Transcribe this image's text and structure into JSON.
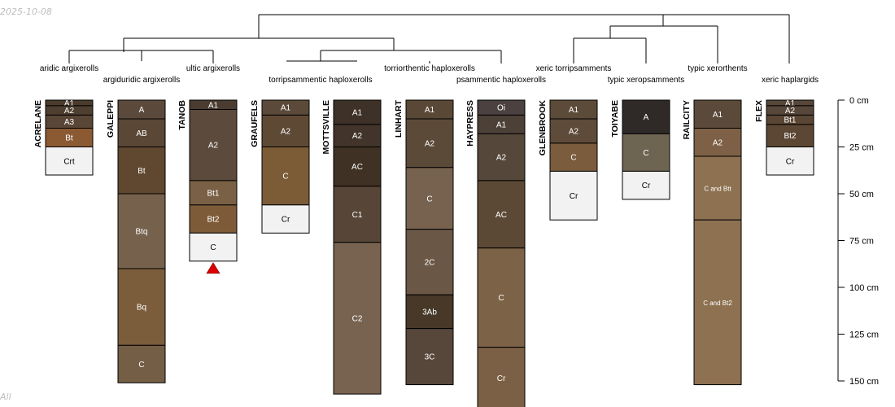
{
  "date_stamp": "2025-10-08",
  "footer_stub": "All",
  "depth_axis": {
    "unit": "cm",
    "ticks": [
      {
        "depth": 0,
        "label": "0 cm"
      },
      {
        "depth": 25,
        "label": "25 cm"
      },
      {
        "depth": 50,
        "label": "50 cm"
      },
      {
        "depth": 75,
        "label": "75 cm"
      },
      {
        "depth": 100,
        "label": "100 cm"
      },
      {
        "depth": 125,
        "label": "125 cm"
      },
      {
        "depth": 150,
        "label": "150 cm"
      }
    ]
  },
  "profiles": [
    {
      "name": "ACRELANE",
      "taxon": "aridic argixerolls",
      "horizons": [
        {
          "name": "A1",
          "top": 0,
          "bottom": 3,
          "color": "#4a3b2c"
        },
        {
          "name": "A2",
          "top": 3,
          "bottom": 8,
          "color": "#4e3f30"
        },
        {
          "name": "A3",
          "top": 8,
          "bottom": 15,
          "color": "#5a4636"
        },
        {
          "name": "Bt",
          "top": 15,
          "bottom": 25,
          "color": "#8b5a33"
        },
        {
          "name": "Crt",
          "top": 25,
          "bottom": 40,
          "color": "#f2f2f2"
        }
      ]
    },
    {
      "name": "GALEPPI",
      "taxon": "argiduridic argixerolls",
      "horizons": [
        {
          "name": "A",
          "top": 0,
          "bottom": 10,
          "color": "#5b4a3c"
        },
        {
          "name": "AB",
          "top": 10,
          "bottom": 25,
          "color": "#5a4735"
        },
        {
          "name": "Bt",
          "top": 25,
          "bottom": 50,
          "color": "#5f4730"
        },
        {
          "name": "Btq",
          "top": 50,
          "bottom": 90,
          "color": "#76614c"
        },
        {
          "name": "Bq",
          "top": 90,
          "bottom": 131,
          "color": "#7b5d3c"
        },
        {
          "name": "C",
          "top": 131,
          "bottom": 151,
          "color": "#745e46"
        }
      ]
    },
    {
      "name": "TANOB",
      "taxon": "ultic argixerolls",
      "horizons": [
        {
          "name": "A1",
          "top": 0,
          "bottom": 5,
          "color": "#4a3c30"
        },
        {
          "name": "A2",
          "top": 5,
          "bottom": 43,
          "color": "#5c4a3c"
        },
        {
          "name": "Bt1",
          "top": 43,
          "bottom": 56,
          "color": "#7a6045"
        },
        {
          "name": "Bt2",
          "top": 56,
          "bottom": 71,
          "color": "#7e5b38"
        },
        {
          "name": "C",
          "top": 71,
          "bottom": 86,
          "color": "#f2f2f2"
        }
      ]
    },
    {
      "name": "GRAUFELS",
      "taxon": "torripsammentic haploxerolls",
      "horizons": [
        {
          "name": "A1",
          "top": 0,
          "bottom": 8,
          "color": "#5b4a3a"
        },
        {
          "name": "A2",
          "top": 8,
          "bottom": 25,
          "color": "#5e4935"
        },
        {
          "name": "C",
          "top": 25,
          "bottom": 56,
          "color": "#7b5c37"
        },
        {
          "name": "Cr",
          "top": 56,
          "bottom": 71,
          "color": "#f2f2f2"
        }
      ]
    },
    {
      "name": "MOTTSVILLE",
      "taxon": "",
      "horizons": [
        {
          "name": "A1",
          "top": 0,
          "bottom": 13,
          "color": "#3e3127"
        },
        {
          "name": "A2",
          "top": 13,
          "bottom": 25,
          "color": "#42342a"
        },
        {
          "name": "AC",
          "top": 25,
          "bottom": 46,
          "color": "#3f3124"
        },
        {
          "name": "C1",
          "top": 46,
          "bottom": 76,
          "color": "#574637"
        },
        {
          "name": "C2",
          "top": 76,
          "bottom": 157,
          "color": "#776350"
        }
      ]
    },
    {
      "name": "LINHART",
      "taxon": "torriorthentic haploxerolls",
      "horizons": [
        {
          "name": "A1",
          "top": 0,
          "bottom": 10,
          "color": "#5a4837"
        },
        {
          "name": "A2",
          "top": 10,
          "bottom": 36,
          "color": "#5c4a39"
        },
        {
          "name": "C",
          "top": 36,
          "bottom": 69,
          "color": "#76624f"
        },
        {
          "name": "2C",
          "top": 69,
          "bottom": 104,
          "color": "#6a5746"
        },
        {
          "name": "3Ab",
          "top": 104,
          "bottom": 122,
          "color": "#473828"
        },
        {
          "name": "3C",
          "top": 122,
          "bottom": 152,
          "color": "#57473a"
        }
      ]
    },
    {
      "name": "HAYPRESS",
      "taxon": "psammentic haploxerolls",
      "horizons": [
        {
          "name": "Oi",
          "top": 0,
          "bottom": 8,
          "color": "#4a4140"
        },
        {
          "name": "A1",
          "top": 8,
          "bottom": 18,
          "color": "#4d4037"
        },
        {
          "name": "A2",
          "top": 18,
          "bottom": 43,
          "color": "#55473a"
        },
        {
          "name": "AC",
          "top": 43,
          "bottom": 79,
          "color": "#5c4935"
        },
        {
          "name": "C",
          "top": 79,
          "bottom": 132,
          "color": "#7c6247"
        },
        {
          "name": "Cr",
          "top": 132,
          "bottom": 165,
          "color": "#7b6045"
        }
      ]
    },
    {
      "name": "GLENBROOK",
      "taxon": "xeric torripsamments",
      "horizons": [
        {
          "name": "A1",
          "top": 0,
          "bottom": 10,
          "color": "#5d4b3a"
        },
        {
          "name": "A2",
          "top": 10,
          "bottom": 23,
          "color": "#5e4b39"
        },
        {
          "name": "C",
          "top": 23,
          "bottom": 38,
          "color": "#7b5c3d"
        },
        {
          "name": "Cr",
          "top": 38,
          "bottom": 64,
          "color": "#f2f2f2"
        }
      ]
    },
    {
      "name": "TOIYABE",
      "taxon": "typic xeropsamments",
      "horizons": [
        {
          "name": "A",
          "top": 0,
          "bottom": 18,
          "color": "#2f2a27"
        },
        {
          "name": "C",
          "top": 18,
          "bottom": 38,
          "color": "#6e6452"
        },
        {
          "name": "Cr",
          "top": 38,
          "bottom": 53,
          "color": "#f2f2f2"
        }
      ]
    },
    {
      "name": "RAILCITY",
      "taxon": "typic xerorthents",
      "horizons": [
        {
          "name": "A1",
          "top": 0,
          "bottom": 15,
          "color": "#5b4a3a"
        },
        {
          "name": "A2",
          "top": 15,
          "bottom": 30,
          "color": "#7d6045"
        },
        {
          "name": "C and Btt",
          "top": 30,
          "bottom": 64,
          "color": "#8d7150"
        },
        {
          "name": "C and Bt2",
          "top": 64,
          "bottom": 152,
          "color": "#8d7150"
        }
      ]
    },
    {
      "name": "FLEX",
      "taxon": "xeric haplargids",
      "horizons": [
        {
          "name": "A1",
          "top": 0,
          "bottom": 3,
          "color": "#56473a"
        },
        {
          "name": "A2",
          "top": 3,
          "bottom": 8,
          "color": "#57473a"
        },
        {
          "name": "Bt1",
          "top": 8,
          "bottom": 13,
          "color": "#5a4634"
        },
        {
          "name": "Bt2",
          "top": 13,
          "bottom": 25,
          "color": "#5c4634"
        },
        {
          "name": "Cr",
          "top": 25,
          "bottom": 40,
          "color": "#f2f2f2"
        }
      ]
    }
  ]
}
